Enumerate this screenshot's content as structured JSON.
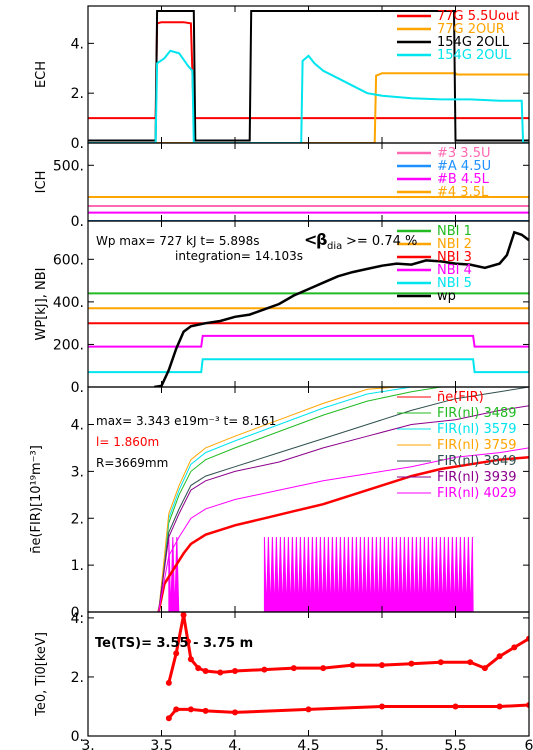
{
  "chart_data": [
    {
      "type": "line",
      "ylabel": "ECH",
      "ylim": [
        0,
        5.5
      ],
      "yticks": [
        0,
        2,
        4
      ],
      "ytick_labels": [
        "0.",
        "2.",
        "4."
      ],
      "grid": false,
      "legend_position": "top-right",
      "series": [
        {
          "name": "77G 5.5Uout",
          "color": "#ff0000",
          "x": [
            3.0,
            3.46,
            3.47,
            3.5,
            3.65,
            3.7,
            3.72,
            6.0
          ],
          "y": [
            1.0,
            1.0,
            4.8,
            4.85,
            4.85,
            4.8,
            1.0,
            1.0
          ]
        },
        {
          "name": "77G 2OUR",
          "color": "#ffa500",
          "x": [
            3.0,
            4.95,
            4.96,
            5.0,
            5.5,
            5.51,
            5.95,
            6.0
          ],
          "y": [
            0.0,
            0.0,
            2.7,
            2.8,
            2.8,
            2.75,
            2.75,
            2.75
          ]
        },
        {
          "name": "154G 2OLL",
          "color": "#000000",
          "x": [
            3.0,
            3.46,
            3.47,
            3.72,
            3.73,
            4.1,
            4.11,
            5.49,
            5.5,
            6.0
          ],
          "y": [
            0.1,
            0.1,
            5.3,
            5.3,
            0.1,
            0.1,
            5.3,
            5.3,
            0.1,
            0.1
          ]
        },
        {
          "name": "154G 2OUL",
          "color": "#00e5ee",
          "x": [
            3.0,
            3.46,
            3.47,
            3.52,
            3.56,
            3.62,
            3.68,
            3.71,
            3.72,
            4.45,
            4.46,
            4.5,
            4.54,
            4.6,
            4.7,
            4.8,
            4.9,
            5.0,
            5.2,
            5.4,
            5.6,
            5.8,
            5.95,
            5.96,
            6.0
          ],
          "y": [
            0.0,
            0.0,
            3.2,
            3.4,
            3.7,
            3.6,
            3.1,
            2.9,
            0.0,
            0.0,
            3.3,
            3.5,
            3.2,
            2.9,
            2.6,
            2.3,
            2.0,
            1.9,
            1.8,
            1.75,
            1.75,
            1.7,
            1.7,
            0.0,
            0.0
          ]
        }
      ]
    },
    {
      "type": "line",
      "ylabel": "ICH",
      "ylim": [
        0,
        700
      ],
      "yticks": [
        0,
        500
      ],
      "ytick_labels": [
        "0.",
        "500."
      ],
      "grid": false,
      "legend_position": "top-right",
      "series": [
        {
          "name": "#3 3.5U",
          "color": "#ff69b4",
          "x": [
            3.0,
            6.0
          ],
          "y": [
            135,
            135
          ]
        },
        {
          "name": "#A 4.5U",
          "color": "#1e90ff",
          "x": [
            3.0,
            6.0
          ],
          "y": [
            0,
            0
          ]
        },
        {
          "name": "#B 4.5L",
          "color": "#ff00ff",
          "x": [
            3.0,
            6.0
          ],
          "y": [
            75,
            75
          ]
        },
        {
          "name": "#4 3.5L",
          "color": "#ffa500",
          "x": [
            3.0,
            6.0
          ],
          "y": [
            215,
            215
          ]
        }
      ]
    },
    {
      "type": "line",
      "ylabel": "WP[kJ], NBI",
      "ylim": [
        0,
        780
      ],
      "yticks": [
        0,
        200,
        400,
        600
      ],
      "ytick_labels": [
        "0.",
        "200.",
        "400.",
        "600."
      ],
      "grid": false,
      "legend_position": "top-right",
      "annotations": [
        "Wp max= 727 kJ t= 5.898s",
        "<",
        "β",
        "dia",
        ">= 0.74 %",
        "integration= 14.103s"
      ],
      "series": [
        {
          "name": "NBI 1",
          "color": "#22bb22",
          "x": [
            3.0,
            6.0
          ],
          "y": [
            440,
            440
          ]
        },
        {
          "name": "NBI 2",
          "color": "#ffa500",
          "x": [
            3.0,
            6.0
          ],
          "y": [
            370,
            370
          ]
        },
        {
          "name": "NBI 3",
          "color": "#ff0000",
          "x": [
            3.0,
            6.0
          ],
          "y": [
            300,
            300
          ]
        },
        {
          "name": "NBI 4",
          "color": "#ff00ff",
          "x": [
            3.0,
            3.77,
            3.78,
            5.62,
            5.63,
            6.0
          ],
          "y": [
            190,
            190,
            240,
            240,
            190,
            190
          ]
        },
        {
          "name": "NBI 5",
          "color": "#00e5ee",
          "x": [
            3.0,
            3.77,
            3.78,
            5.62,
            5.63,
            6.0
          ],
          "y": [
            70,
            70,
            130,
            130,
            70,
            70
          ]
        },
        {
          "name": "wp",
          "color": "#000000",
          "x": [
            3.45,
            3.5,
            3.55,
            3.6,
            3.65,
            3.7,
            3.8,
            3.9,
            4.0,
            4.1,
            4.2,
            4.3,
            4.4,
            4.5,
            4.6,
            4.7,
            4.8,
            4.9,
            5.0,
            5.1,
            5.2,
            5.3,
            5.4,
            5.5,
            5.6,
            5.7,
            5.8,
            5.85,
            5.9,
            5.95,
            6.0
          ],
          "y": [
            0,
            5,
            80,
            180,
            260,
            285,
            300,
            310,
            330,
            340,
            365,
            390,
            430,
            460,
            490,
            520,
            540,
            555,
            570,
            580,
            575,
            595,
            590,
            580,
            575,
            560,
            580,
            620,
            727,
            715,
            690
          ]
        }
      ]
    },
    {
      "type": "line",
      "ylabel": "n̄e(FIR)[10¹⁹m⁻³]",
      "ylim": [
        0,
        4.8
      ],
      "yticks": [
        0,
        1,
        2,
        3,
        4
      ],
      "ytick_labels": [
        "0.",
        "1.",
        "2.",
        "3.",
        "4."
      ],
      "grid": false,
      "legend_position": "top-right",
      "annotations": [
        "max= 3.343 e19m⁻³ t= 8.161",
        "l= 1.860m",
        "R=3669mm"
      ],
      "series": [
        {
          "name": "n̄e(FIR)",
          "color": "#ff0000",
          "x": [
            3.48,
            3.52,
            3.56,
            3.6,
            3.65,
            3.7,
            3.8,
            4.0,
            4.2,
            4.4,
            4.6,
            4.8,
            5.0,
            5.2,
            5.4,
            5.6,
            5.8,
            6.0
          ],
          "y": [
            0,
            0.6,
            0.8,
            1.0,
            1.25,
            1.45,
            1.65,
            1.85,
            2.0,
            2.15,
            2.3,
            2.5,
            2.7,
            2.9,
            3.05,
            3.15,
            3.25,
            3.3
          ]
        },
        {
          "name": "FIR(nl) 3489",
          "color": "#22bb22",
          "x": [
            3.48,
            3.55,
            3.62,
            3.7,
            3.8,
            4.0,
            4.3,
            4.6,
            4.9,
            5.2,
            5.4,
            5.6
          ],
          "y": [
            0,
            1.9,
            2.5,
            3.0,
            3.25,
            3.5,
            3.85,
            4.2,
            4.5,
            4.7,
            4.8,
            4.8
          ]
        },
        {
          "name": "FIR(nl) 3579",
          "color": "#00e5ee",
          "x": [
            3.48,
            3.55,
            3.62,
            3.7,
            3.8,
            4.0,
            4.3,
            4.6,
            4.9,
            5.2,
            5.3
          ],
          "y": [
            0,
            2.0,
            2.6,
            3.15,
            3.4,
            3.65,
            4.0,
            4.35,
            4.65,
            4.8,
            4.8
          ]
        },
        {
          "name": "FIR(nl) 3759",
          "color": "#ffa500",
          "x": [
            3.48,
            3.55,
            3.62,
            3.7,
            3.8,
            4.0,
            4.3,
            4.6,
            4.9,
            5.1
          ],
          "y": [
            0,
            2.1,
            2.7,
            3.25,
            3.5,
            3.75,
            4.1,
            4.45,
            4.75,
            4.8
          ]
        },
        {
          "name": "FIR(nl) 3849",
          "color": "#2f4f4f",
          "x": [
            3.48,
            3.55,
            3.62,
            3.7,
            3.8,
            4.0,
            4.3,
            4.6,
            4.9,
            5.2,
            5.5,
            5.8,
            6.0
          ],
          "y": [
            0,
            1.7,
            2.2,
            2.7,
            2.9,
            3.1,
            3.4,
            3.7,
            4.0,
            4.3,
            4.55,
            4.7,
            4.8
          ]
        },
        {
          "name": "FIR(nl) 3939",
          "color": "#8b008b",
          "x": [
            3.48,
            3.55,
            3.62,
            3.7,
            3.8,
            4.0,
            4.3,
            4.6,
            4.9,
            5.2,
            5.5,
            5.8,
            6.0
          ],
          "y": [
            0,
            1.6,
            2.1,
            2.6,
            2.8,
            3.0,
            3.2,
            3.5,
            3.75,
            4.0,
            4.1,
            4.3,
            4.4
          ]
        },
        {
          "name": "FIR(nl) 4029",
          "color": "#ff00ff",
          "x": [
            3.48,
            3.55,
            3.62,
            3.7,
            3.8,
            4.0,
            4.3,
            4.6,
            4.9,
            5.2,
            5.5,
            5.8,
            6.0
          ],
          "y": [
            0,
            1.2,
            1.6,
            2.0,
            2.2,
            2.4,
            2.6,
            2.8,
            2.95,
            3.1,
            3.3,
            3.4,
            3.5
          ]
        }
      ],
      "bursts": [
        {
          "color": "#ff00ff",
          "x_start": 3.55,
          "x_end": 3.62,
          "y_low": 0,
          "y_high": 1.6
        },
        {
          "color": "#ff00ff",
          "x_start": 4.2,
          "x_end": 5.62,
          "y_low": 0,
          "y_high": 1.6
        }
      ]
    },
    {
      "type": "scatter",
      "xlabel": "",
      "ylabel": "Te0, Ti0[keV]",
      "xlim": [
        3.0,
        6.0
      ],
      "ylim": [
        0,
        4.2
      ],
      "xticks": [
        3.0,
        3.5,
        4.0,
        4.5,
        5.0,
        5.5,
        6.0
      ],
      "xtick_labels": [
        "3.",
        "3.5",
        "4.",
        "4.5",
        "5.",
        "5.5",
        "6"
      ],
      "yticks": [
        0,
        2,
        4
      ],
      "ytick_labels": [
        "0.",
        "2.",
        "4."
      ],
      "grid": false,
      "annotations": [
        "Te(TS)= 3.55 - 3.75 m"
      ],
      "series": [
        {
          "name": "",
          "color": "#ff0000",
          "x": [
            3.55,
            3.6,
            3.65,
            3.68,
            3.7,
            3.75,
            3.8,
            3.9,
            4.0,
            4.2,
            4.4,
            4.6,
            4.8,
            5.0,
            5.2,
            5.4,
            5.6,
            5.7,
            5.8,
            5.9,
            6.0
          ],
          "y": [
            1.8,
            2.8,
            4.1,
            3.2,
            2.6,
            2.3,
            2.2,
            2.15,
            2.2,
            2.25,
            2.3,
            2.3,
            2.4,
            2.4,
            2.45,
            2.5,
            2.5,
            2.3,
            2.7,
            3.0,
            3.3
          ]
        },
        {
          "name": "",
          "color": "#ff0000",
          "x": [
            3.55,
            3.6,
            3.7,
            3.8,
            4.0,
            4.5,
            5.0,
            5.5,
            5.8,
            6.0
          ],
          "y": [
            0.6,
            0.9,
            0.9,
            0.85,
            0.8,
            0.9,
            1.0,
            1.0,
            1.0,
            1.05
          ]
        }
      ]
    }
  ]
}
